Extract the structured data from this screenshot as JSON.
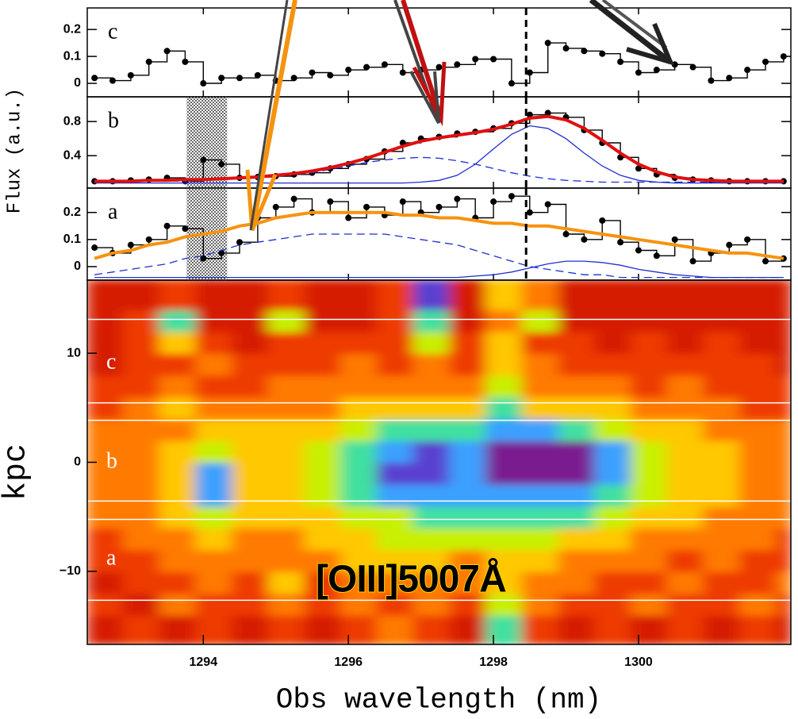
{
  "chart_data": [
    {
      "type": "line",
      "label": "c",
      "xlim": [
        1292.4,
        1302.1
      ],
      "ylim": [
        -0.05,
        0.28
      ],
      "yticks": [
        0,
        0.1,
        0.2
      ],
      "vline": 1298.45,
      "x": [
        1292.5,
        1292.75,
        1293,
        1293.25,
        1293.5,
        1293.75,
        1294,
        1294.25,
        1294.5,
        1294.75,
        1295,
        1295.25,
        1295.5,
        1295.75,
        1296,
        1296.25,
        1296.5,
        1296.75,
        1297,
        1297.25,
        1297.5,
        1297.75,
        1298,
        1298.25,
        1298.5,
        1298.75,
        1299,
        1299.25,
        1299.5,
        1299.75,
        1300,
        1300.25,
        1300.5,
        1300.75,
        1301,
        1301.25,
        1301.5,
        1301.75,
        1302
      ],
      "series": [
        {
          "style": "points",
          "color": "#000000",
          "values": [
            0.02,
            0.01,
            0.03,
            0.08,
            0.12,
            0.08,
            0,
            0.02,
            0.02,
            0.03,
            0.01,
            0.02,
            0.04,
            0.03,
            0.05,
            0.06,
            0.07,
            0.04,
            0.05,
            0.06,
            0.07,
            0.09,
            0.09,
            0,
            0.04,
            0.15,
            0.13,
            0.12,
            0.11,
            0.08,
            0.04,
            0.05,
            0.07,
            0.06,
            0.01,
            0.02,
            0.05,
            0.08,
            0.1
          ]
        }
      ]
    },
    {
      "type": "line",
      "label": "b",
      "ylabel": "Flux (a.u.)",
      "xlim": [
        1292.4,
        1302.1
      ],
      "ylim": [
        0.02,
        1.09
      ],
      "yticks": [
        0.4,
        0.8
      ],
      "vline": 1298.45,
      "masked_range": [
        1293.77,
        1294.33
      ],
      "x": [
        1292.5,
        1292.75,
        1293,
        1293.25,
        1293.5,
        1293.75,
        1294,
        1294.25,
        1294.5,
        1294.75,
        1295,
        1295.25,
        1295.5,
        1295.75,
        1296,
        1296.25,
        1296.5,
        1296.75,
        1297,
        1297.25,
        1297.5,
        1297.75,
        1298,
        1298.25,
        1298.5,
        1298.75,
        1299,
        1299.25,
        1299.5,
        1299.75,
        1300,
        1300.25,
        1300.5,
        1300.75,
        1301,
        1301.25,
        1301.5,
        1301.75,
        1302
      ],
      "series": [
        {
          "style": "points",
          "color": "#000000",
          "values": [
            0.1,
            0.1,
            0.11,
            0.12,
            0.14,
            0.1,
            0.35,
            0.3,
            0.14,
            0.15,
            0.16,
            0.18,
            0.2,
            0.25,
            0.3,
            0.36,
            0.45,
            0.55,
            0.6,
            0.62,
            0.66,
            0.68,
            0.72,
            0.78,
            0.88,
            0.9,
            0.85,
            0.7,
            0.55,
            0.38,
            0.25,
            0.18,
            0.14,
            0.12,
            0.11,
            0.1,
            0.1,
            0.1,
            0.1
          ]
        },
        {
          "style": "dashed",
          "color": "#1f2fd0",
          "values": [
            0.09,
            0.09,
            0.09,
            0.1,
            0.1,
            0.1,
            0.11,
            0.12,
            0.13,
            0.14,
            0.16,
            0.18,
            0.2,
            0.24,
            0.28,
            0.32,
            0.35,
            0.37,
            0.38,
            0.37,
            0.34,
            0.3,
            0.25,
            0.2,
            0.16,
            0.13,
            0.11,
            0.1,
            0.09,
            0.09,
            0.09,
            0.09,
            0.09,
            0.09,
            0.09,
            0.09,
            0.09,
            0.09,
            0.09
          ]
        },
        {
          "style": "solid",
          "color": "#1f2fd0",
          "values": [
            0.08,
            0.08,
            0.08,
            0.08,
            0.08,
            0.08,
            0.08,
            0.08,
            0.08,
            0.08,
            0.08,
            0.08,
            0.08,
            0.08,
            0.08,
            0.08,
            0.08,
            0.08,
            0.09,
            0.11,
            0.17,
            0.3,
            0.48,
            0.65,
            0.75,
            0.72,
            0.6,
            0.43,
            0.28,
            0.17,
            0.11,
            0.09,
            0.08,
            0.08,
            0.08,
            0.08,
            0.08,
            0.08,
            0.08
          ]
        },
        {
          "style": "fit",
          "color": "#e01010",
          "values": [
            0.1,
            0.1,
            0.1,
            0.11,
            0.11,
            0.12,
            0.12,
            0.13,
            0.14,
            0.15,
            0.17,
            0.19,
            0.22,
            0.26,
            0.31,
            0.37,
            0.44,
            0.51,
            0.57,
            0.61,
            0.64,
            0.67,
            0.71,
            0.77,
            0.84,
            0.86,
            0.82,
            0.72,
            0.58,
            0.43,
            0.3,
            0.21,
            0.15,
            0.12,
            0.11,
            0.1,
            0.1,
            0.1,
            0.1
          ]
        }
      ]
    },
    {
      "type": "line",
      "label": "a",
      "xlim": [
        1292.4,
        1302.1
      ],
      "ylim": [
        -0.05,
        0.29
      ],
      "yticks": [
        0,
        0.1,
        0.2
      ],
      "vline": 1298.45,
      "masked_range": [
        1293.77,
        1294.33
      ],
      "x": [
        1292.5,
        1292.75,
        1293,
        1293.25,
        1293.5,
        1293.75,
        1294,
        1294.25,
        1294.5,
        1294.75,
        1295,
        1295.25,
        1295.5,
        1295.75,
        1296,
        1296.25,
        1296.5,
        1296.75,
        1297,
        1297.25,
        1297.5,
        1297.75,
        1298,
        1298.25,
        1298.5,
        1298.75,
        1299,
        1299.25,
        1299.5,
        1299.75,
        1300,
        1300.25,
        1300.5,
        1300.75,
        1301,
        1301.25,
        1301.5,
        1301.75,
        1302
      ],
      "series": [
        {
          "style": "points",
          "color": "#000000",
          "values": [
            0.07,
            0.05,
            0.08,
            0.1,
            0.15,
            0.14,
            0.03,
            0.05,
            0.09,
            0.18,
            0.22,
            0.25,
            0.2,
            0.24,
            0.18,
            0.22,
            0.19,
            0.24,
            0.2,
            0.22,
            0.25,
            0.18,
            0.24,
            0.26,
            0.2,
            0.23,
            0.12,
            0.1,
            0.17,
            0.09,
            0.06,
            0.04,
            0.1,
            0.02,
            0.05,
            0.08,
            0.1,
            0.02,
            0.03
          ]
        },
        {
          "style": "dashed",
          "color": "#1f2fd0",
          "values": [
            -0.03,
            -0.02,
            -0.01,
            0,
            0.01,
            0.03,
            0.04,
            0.06,
            0.08,
            0.09,
            0.1,
            0.11,
            0.12,
            0.12,
            0.12,
            0.12,
            0.12,
            0.11,
            0.1,
            0.09,
            0.08,
            0.06,
            0.04,
            0.02,
            0,
            -0.01,
            -0.02,
            -0.03,
            -0.03,
            -0.04,
            -0.04,
            -0.04,
            -0.04,
            -0.04,
            -0.04,
            -0.04,
            -0.04,
            -0.04,
            -0.04
          ]
        },
        {
          "style": "solid",
          "color": "#1f2fd0",
          "values": [
            -0.04,
            -0.04,
            -0.04,
            -0.04,
            -0.04,
            -0.04,
            -0.04,
            -0.04,
            -0.04,
            -0.04,
            -0.04,
            -0.04,
            -0.04,
            -0.04,
            -0.04,
            -0.04,
            -0.04,
            -0.04,
            -0.04,
            -0.04,
            -0.04,
            -0.035,
            -0.03,
            -0.02,
            -0.005,
            0.01,
            0.02,
            0.02,
            0.015,
            0.005,
            -0.01,
            -0.02,
            -0.03,
            -0.035,
            -0.04,
            -0.04,
            -0.04,
            -0.04,
            -0.04
          ]
        },
        {
          "style": "fit",
          "color": "#f5930f",
          "values": [
            0.03,
            0.05,
            0.06,
            0.08,
            0.09,
            0.11,
            0.12,
            0.13,
            0.15,
            0.16,
            0.18,
            0.19,
            0.2,
            0.2,
            0.2,
            0.2,
            0.2,
            0.19,
            0.19,
            0.18,
            0.18,
            0.17,
            0.16,
            0.16,
            0.15,
            0.15,
            0.14,
            0.13,
            0.12,
            0.11,
            0.1,
            0.09,
            0.08,
            0.07,
            0.06,
            0.05,
            0.05,
            0.04,
            0.03
          ]
        }
      ]
    },
    {
      "type": "heatmap",
      "xlabel": "Obs wavelength (nm)",
      "ylabel": "kpc",
      "annotation": "[OIII]5007Å",
      "xlim": [
        1292.4,
        1302.1
      ],
      "ylim": [
        -16.7,
        16.7
      ],
      "xticks": [
        1294,
        1296,
        1298,
        1300
      ],
      "yticks": [
        {
          "value": -10,
          "label": "−10"
        },
        0,
        10
      ],
      "region_labels": [
        "c",
        "b",
        "a"
      ],
      "slit_edges": [
        13.1,
        5.45,
        3.85,
        -3.56,
        -5.24,
        -12.65
      ],
      "colorscale": [
        "#8b0000",
        "#d61a00",
        "#ee3b00",
        "#ff7a00",
        "#ffc800",
        "#c8f000",
        "#40e0a0",
        "#3aa0ff",
        "#5a40d0",
        "#7a1a90"
      ],
      "zlim": [
        0,
        9
      ],
      "x_edges": [
        1292.4,
        1292.9,
        1293.4,
        1293.9,
        1294.4,
        1294.9,
        1295.4,
        1295.9,
        1296.4,
        1296.9,
        1297.4,
        1297.9,
        1298.4,
        1298.9,
        1299.4,
        1299.9,
        1300.4,
        1300.9,
        1301.4,
        1301.9,
        1302.1
      ],
      "y_edges": [
        -16.7,
        -14,
        -12,
        -10,
        -8,
        -6,
        -4,
        -2,
        0,
        2,
        4,
        6,
        8,
        10,
        12,
        14,
        16.7
      ],
      "z": [
        [
          1,
          2,
          1,
          2,
          1,
          2,
          1,
          2,
          3,
          2,
          1,
          6,
          2,
          1,
          2,
          1,
          2,
          1,
          2,
          1
        ],
        [
          2,
          1,
          3,
          2,
          2,
          3,
          2,
          3,
          2,
          3,
          2,
          5,
          3,
          2,
          2,
          3,
          2,
          2,
          3,
          2
        ],
        [
          1,
          2,
          2,
          3,
          2,
          4,
          2,
          3,
          3,
          3,
          3,
          4,
          3,
          3,
          2,
          2,
          3,
          2,
          2,
          3
        ],
        [
          2,
          2,
          3,
          3,
          3,
          3,
          3,
          4,
          4,
          4,
          3,
          4,
          4,
          3,
          3,
          3,
          2,
          3,
          2,
          2
        ],
        [
          2,
          3,
          3,
          4,
          3,
          3,
          4,
          4,
          5,
          5,
          5,
          5,
          5,
          4,
          4,
          3,
          3,
          3,
          3,
          2
        ],
        [
          3,
          3,
          4,
          5,
          4,
          4,
          4,
          5,
          5,
          6,
          6,
          6,
          6,
          6,
          5,
          4,
          4,
          3,
          3,
          3
        ],
        [
          3,
          3,
          4,
          7,
          4,
          4,
          5,
          6,
          7,
          7,
          7,
          7,
          7,
          7,
          6,
          5,
          4,
          4,
          3,
          3
        ],
        [
          3,
          3,
          4,
          7,
          4,
          4,
          5,
          6,
          8,
          8,
          7,
          9,
          9,
          9,
          7,
          5,
          4,
          4,
          3,
          3
        ],
        [
          3,
          3,
          4,
          5,
          4,
          4,
          5,
          6,
          7,
          8,
          7,
          9,
          9,
          9,
          7,
          5,
          4,
          4,
          3,
          3
        ],
        [
          3,
          3,
          3,
          4,
          4,
          4,
          4,
          5,
          6,
          6,
          6,
          7,
          7,
          6,
          5,
          4,
          4,
          3,
          3,
          3
        ],
        [
          2,
          3,
          4,
          3,
          3,
          3,
          3,
          4,
          4,
          4,
          4,
          6,
          4,
          4,
          4,
          3,
          3,
          3,
          2,
          2
        ],
        [
          2,
          2,
          3,
          2,
          2,
          3,
          3,
          3,
          3,
          3,
          3,
          5,
          3,
          3,
          3,
          2,
          3,
          2,
          2,
          2
        ],
        [
          1,
          2,
          2,
          3,
          2,
          2,
          2,
          3,
          2,
          3,
          2,
          4,
          3,
          2,
          2,
          2,
          2,
          2,
          2,
          1
        ],
        [
          1,
          2,
          4,
          2,
          1,
          2,
          2,
          2,
          2,
          5,
          2,
          4,
          2,
          2,
          1,
          2,
          1,
          2,
          1,
          1
        ],
        [
          1,
          2,
          6,
          1,
          1,
          5,
          1,
          1,
          2,
          6,
          1,
          3,
          5,
          1,
          1,
          1,
          1,
          1,
          1,
          1
        ],
        [
          1,
          1,
          2,
          1,
          1,
          2,
          1,
          1,
          2,
          8,
          1,
          4,
          3,
          1,
          1,
          1,
          1,
          1,
          1,
          1
        ]
      ]
    }
  ]
}
